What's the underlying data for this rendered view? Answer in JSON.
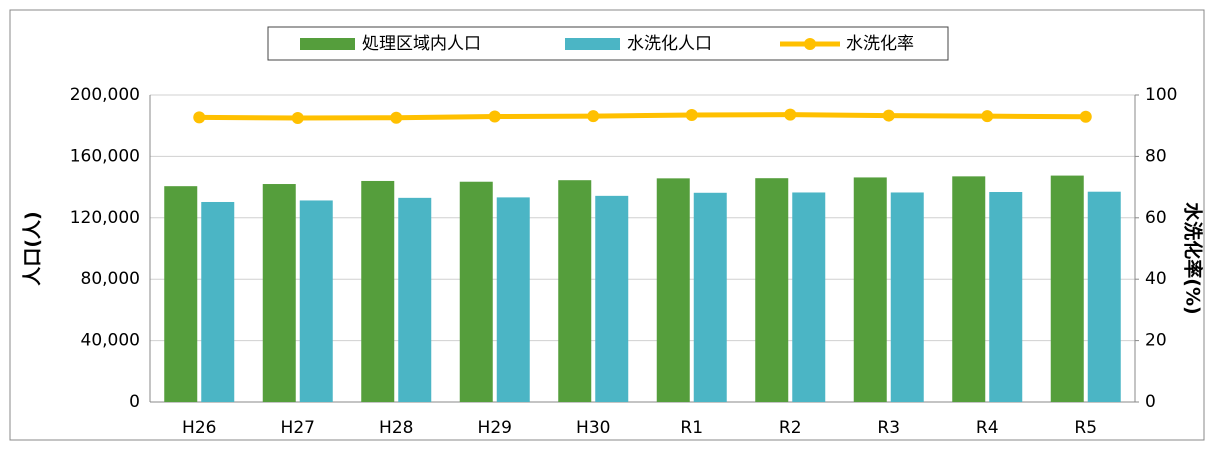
{
  "chart_data": {
    "type": "bar",
    "categories": [
      "H26",
      "H27",
      "H28",
      "H29",
      "H30",
      "R1",
      "R2",
      "R3",
      "R4",
      "R5"
    ],
    "series": [
      {
        "name": "処理区域内人口",
        "type": "bar",
        "color": "#559e3c",
        "values": [
          140600,
          142000,
          144000,
          143500,
          144500,
          145700,
          145800,
          146300,
          147000,
          147500
        ]
      },
      {
        "name": "水洗化人口",
        "type": "bar",
        "color": "#4bb5c5",
        "values": [
          130300,
          131300,
          133000,
          133300,
          134300,
          136300,
          136500,
          136500,
          136800,
          137000
        ]
      },
      {
        "name": "水洗化率",
        "type": "line",
        "axis": "y2",
        "color": "#ffc000",
        "values": [
          92.7,
          92.5,
          92.6,
          93.0,
          93.1,
          93.5,
          93.6,
          93.3,
          93.1,
          92.9
        ]
      }
    ],
    "ylabel": "人口(人)",
    "y2label": "水洗化率(%)",
    "ylim": [
      0,
      200000
    ],
    "yticks": [
      0,
      {
        "value": 40000,
        "label": "40,000"
      },
      {
        "value": 80000,
        "label": "80,000"
      },
      {
        "value": 120000,
        "label": "120,000"
      },
      {
        "value": 160000,
        "label": "160,000"
      },
      {
        "value": 200000,
        "label": "200,000"
      }
    ],
    "y2lim": [
      0,
      100
    ],
    "y2ticks": [
      0,
      20,
      40,
      60,
      80,
      100
    ],
    "grid": true,
    "legend": "top"
  }
}
